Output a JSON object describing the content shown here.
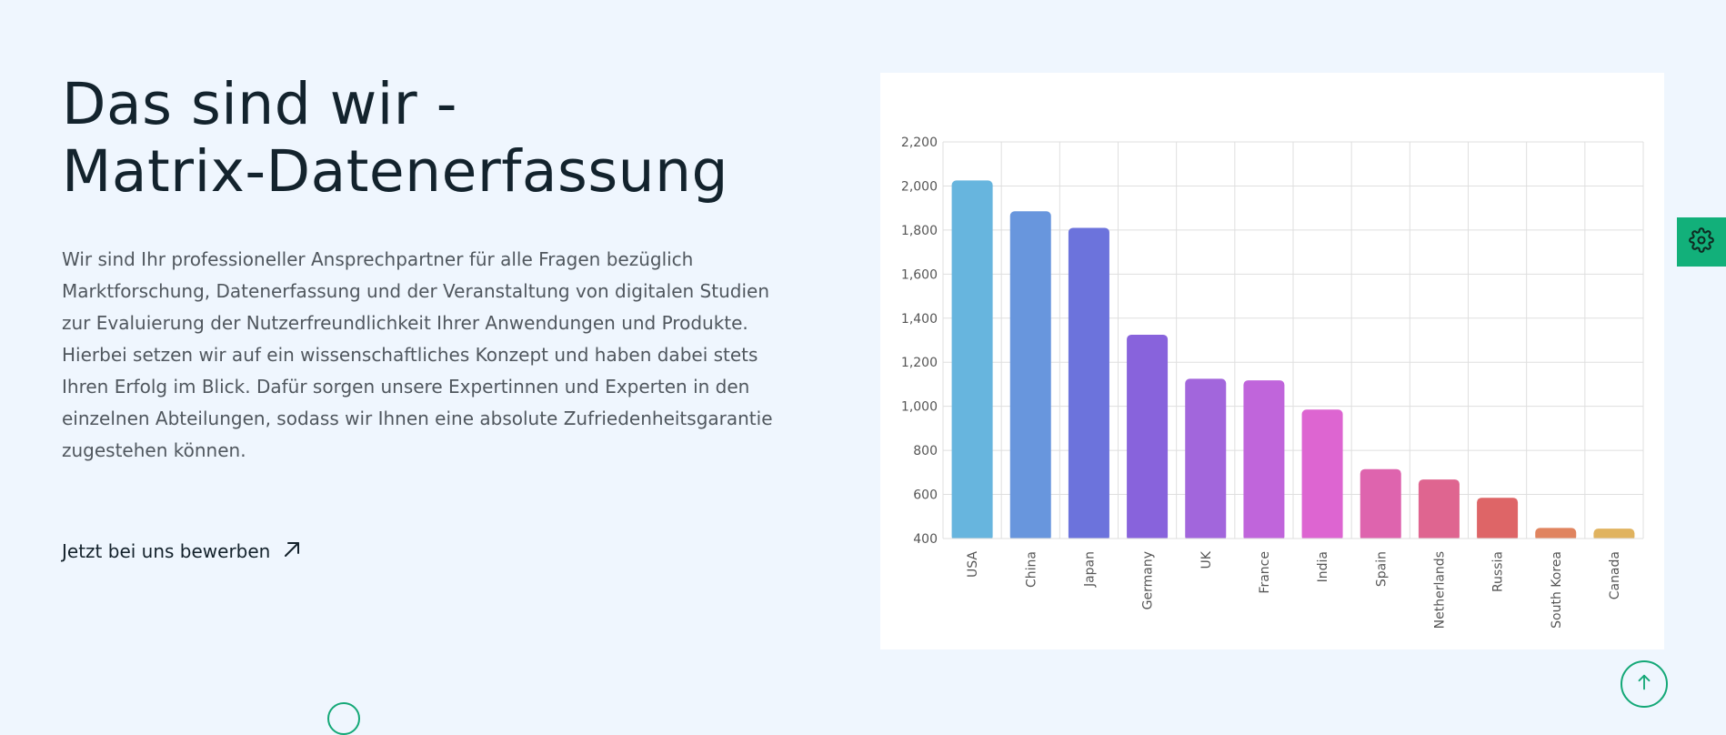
{
  "hero": {
    "title_line1": "Das sind wir -",
    "title_line2": "Matrix-Datenerfassung",
    "paragraph_lines": [
      "Wir sind Ihr professioneller Ansprechpartner für alle Fragen bezüglich",
      "Marktforschung, Datenerfassung und der Veranstaltung von digitalen Studien",
      "zur Evaluierung der Nutzerfreundlichkeit Ihrer Anwendungen und Produkte.",
      "Hierbei setzen wir auf ein wissenschaftliches Konzept und haben dabei stets",
      "Ihren Erfolg im Blick. Dafür sorgen unsere Expertinnen und Experten in den",
      "einzelnen Abteilungen, sodass wir Ihnen eine absolute Zufriedenheitsgarantie",
      "zugestehen können."
    ],
    "cta_label": "Jetzt bei uns bewerben",
    "cta_icon": "arrow-up-right-icon"
  },
  "icons": {
    "settings": "gear-icon",
    "scroll_top": "arrow-up-icon"
  },
  "colors": {
    "background": "#eff6fe",
    "accent": "#12b07a",
    "title": "#13232d",
    "body_text": "#50575e"
  },
  "chart_data": {
    "type": "bar",
    "title": "",
    "xlabel": "",
    "ylabel": "",
    "categories": [
      "USA",
      "China",
      "Japan",
      "Germany",
      "UK",
      "France",
      "India",
      "Spain",
      "Netherlands",
      "Russia",
      "South Korea",
      "Canada"
    ],
    "values": [
      2025,
      1885,
      1810,
      1325,
      1125,
      1118,
      985,
      715,
      668,
      585,
      448,
      445
    ],
    "ylim": [
      400,
      2200
    ],
    "yticks": [
      "400",
      "600",
      "800",
      "1,000",
      "1,200",
      "1,400",
      "1,600",
      "1,800",
      "2,000",
      "2,200"
    ],
    "bar_colors": [
      "#67b5de",
      "#6896dd",
      "#6c73dc",
      "#8863dc",
      "#a266dc",
      "#c065db",
      "#dd65d1",
      "#de64ae",
      "#df6590",
      "#de6567",
      "#e0845f",
      "#e0b35f"
    ],
    "grid": true,
    "legend": "none"
  }
}
